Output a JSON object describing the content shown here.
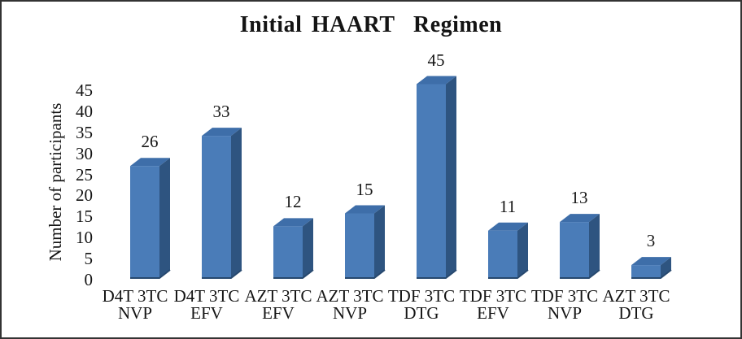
{
  "window": {
    "background": "#ffffff",
    "border_color": "#333333"
  },
  "chart_data": {
    "type": "bar",
    "style": "3d-column",
    "title": "Initial HAART  Regimen",
    "xlabel": "",
    "ylabel": "Number of participants",
    "categories": [
      [
        "D4T 3TC",
        "NVP"
      ],
      [
        "D4T 3TC",
        "EFV"
      ],
      [
        "AZT 3TC",
        "EFV"
      ],
      [
        "AZT 3TC",
        "NVP"
      ],
      [
        "TDF 3TC",
        "DTG"
      ],
      [
        "TDF 3TC",
        "EFV"
      ],
      [
        "TDF 3TC",
        "NVP"
      ],
      [
        "AZT 3TC",
        "DTG"
      ]
    ],
    "values": [
      26,
      33,
      12,
      15,
      45,
      11,
      13,
      3
    ],
    "data_labels_shown": true,
    "yticks": [
      0,
      5,
      10,
      15,
      20,
      25,
      30,
      35,
      40,
      45
    ],
    "ylim": [
      0,
      45
    ],
    "grid": false,
    "legend": null,
    "colors": {
      "bar_front": "#4a7cb8",
      "bar_top": "#3e6ea9",
      "bar_side": "#2e5480",
      "bar_bottom_edge": "#27486e",
      "text": "#141414"
    }
  }
}
